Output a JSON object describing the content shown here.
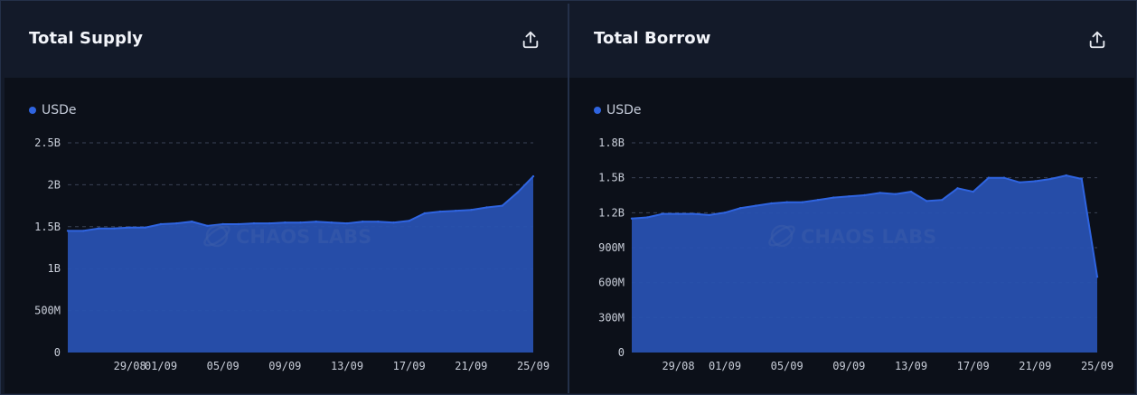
{
  "panels": [
    {
      "title": "Total Supply",
      "export_icon": "export-upload-icon",
      "legend": "USDe",
      "watermark": "CHAOS LABS"
    },
    {
      "title": "Total Borrow",
      "export_icon": "export-upload-icon",
      "legend": "USDe",
      "watermark": "CHAOS LABS"
    }
  ],
  "colors": {
    "series": "#2f64e0",
    "area_fill": "#2851b0",
    "grid": "#3a4256",
    "background": "#0c1019",
    "header": "#131a29"
  },
  "chart_data": [
    {
      "type": "area",
      "title": "Total Supply",
      "series": [
        {
          "name": "USDe",
          "values": [
            1.45,
            1.45,
            1.48,
            1.48,
            1.49,
            1.49,
            1.53,
            1.54,
            1.56,
            1.51,
            1.53,
            1.53,
            1.54,
            1.54,
            1.55,
            1.55,
            1.56,
            1.55,
            1.54,
            1.56,
            1.56,
            1.55,
            1.57,
            1.66,
            1.68,
            1.69,
            1.7,
            1.73,
            1.75,
            1.91,
            2.1
          ]
        }
      ],
      "x_ticks": [
        "29/08",
        "01/09",
        "05/09",
        "09/09",
        "13/09",
        "17/09",
        "21/09",
        "25/09"
      ],
      "x_tick_index": [
        4,
        6,
        10,
        14,
        18,
        22,
        26,
        30
      ],
      "y_ticks": [
        "0",
        "500M",
        "1B",
        "1.5B",
        "2B",
        "2.5B"
      ],
      "y_tick_values": [
        0,
        0.5,
        1,
        1.5,
        2,
        2.5
      ],
      "ylim": [
        0,
        2.5
      ],
      "grid": true,
      "legend_position": "top-left"
    },
    {
      "type": "area",
      "title": "Total Borrow",
      "series": [
        {
          "name": "USDe",
          "values": [
            1.15,
            1.16,
            1.19,
            1.19,
            1.19,
            1.18,
            1.2,
            1.24,
            1.26,
            1.28,
            1.29,
            1.29,
            1.31,
            1.33,
            1.34,
            1.35,
            1.37,
            1.36,
            1.38,
            1.3,
            1.31,
            1.41,
            1.38,
            1.5,
            1.5,
            1.46,
            1.47,
            1.49,
            1.52,
            1.49,
            0.65
          ]
        }
      ],
      "x_ticks": [
        "29/08",
        "01/09",
        "05/09",
        "09/09",
        "13/09",
        "17/09",
        "21/09",
        "25/09"
      ],
      "x_tick_index": [
        3,
        6,
        10,
        14,
        18,
        22,
        26,
        30
      ],
      "y_ticks": [
        "0",
        "300M",
        "600M",
        "900M",
        "1.2B",
        "1.5B",
        "1.8B"
      ],
      "y_tick_values": [
        0,
        0.3,
        0.6,
        0.9,
        1.2,
        1.5,
        1.8
      ],
      "ylim": [
        0,
        1.8
      ],
      "grid": true,
      "legend_position": "top-left"
    }
  ]
}
